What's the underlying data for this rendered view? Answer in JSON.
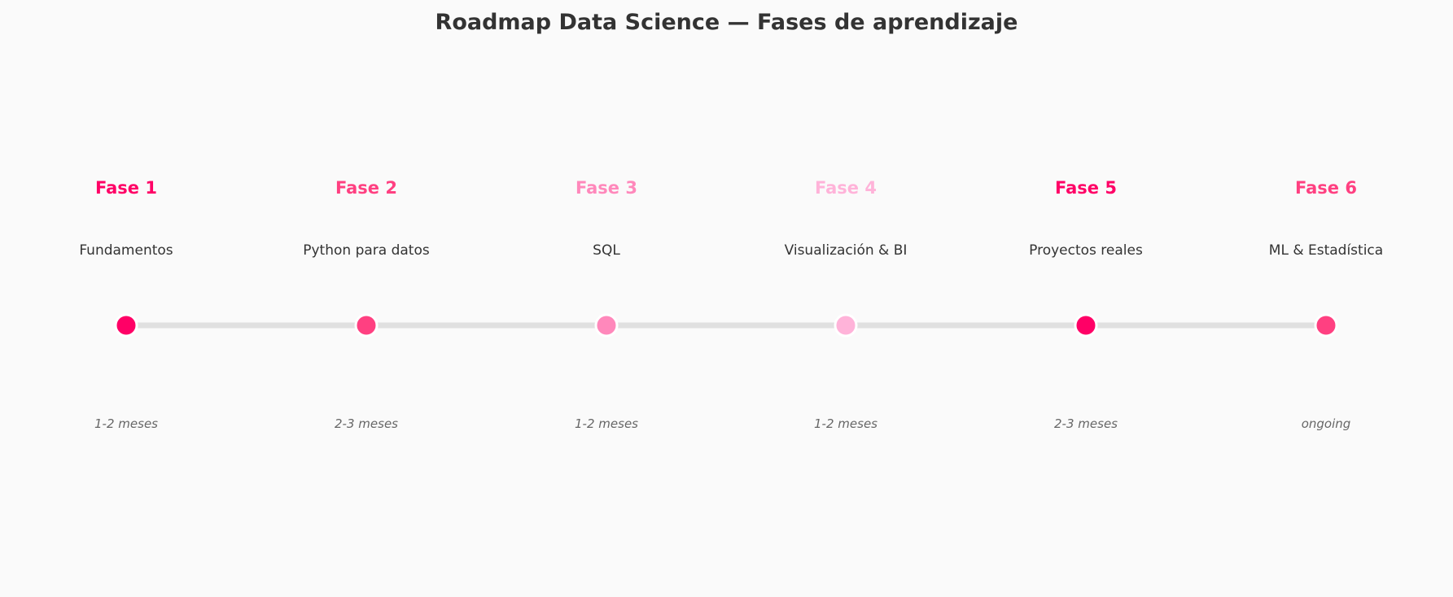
{
  "title": "Roadmap Data Science — Fases de aprendizaje",
  "line_color": "#e0e0e0",
  "phases": [
    {
      "label": "Fase 1",
      "name": "Fundamentos",
      "duration": "1-2 meses",
      "color": "#ff0066"
    },
    {
      "label": "Fase 2",
      "name": "Python para datos",
      "duration": "2-3 meses",
      "color": "#ff4081"
    },
    {
      "label": "Fase 3",
      "name": "SQL",
      "duration": "1-2 meses",
      "color": "#ff88bb"
    },
    {
      "label": "Fase 4",
      "name": "Visualización & BI",
      "duration": "1-2 meses",
      "color": "#ffb3d9"
    },
    {
      "label": "Fase 5",
      "name": "Proyectos reales",
      "duration": "2-3 meses",
      "color": "#ff0066"
    },
    {
      "label": "Fase 6",
      "name": "ML & Estadística",
      "duration": "ongoing",
      "color": "#ff4081"
    }
  ]
}
